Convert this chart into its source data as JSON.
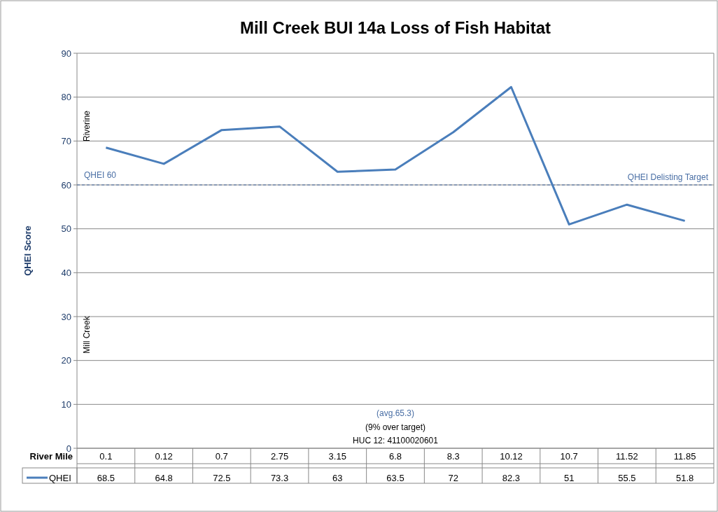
{
  "chart_data": {
    "type": "line",
    "title": "Mill Creek BUI 14a Loss of Fish Habitat",
    "xlabel": "River Mile",
    "ylabel": "QHEI Score",
    "categories": [
      "0.1",
      "0.12",
      "0.7",
      "2.75",
      "3.15",
      "6.8",
      "8.3",
      "10.12",
      "10.7",
      "11.52",
      "11.85"
    ],
    "series": [
      {
        "name": "QHEI",
        "color": "#4a7ebb",
        "values": [
          68.5,
          64.8,
          72.5,
          73.3,
          63,
          63.5,
          72,
          82.3,
          51,
          55.5,
          51.8
        ]
      }
    ],
    "ylim": [
      0,
      90
    ],
    "yticks": [
      0,
      10,
      20,
      30,
      40,
      50,
      60,
      70,
      80,
      90
    ],
    "grid": "y",
    "legend": "bottom",
    "data_labels": true,
    "marker": "none",
    "line_style": "solid",
    "ref_lines": [
      {
        "axis": "y",
        "value": 60,
        "label": "QHEI Delisting Target",
        "color": "#4a6fa5",
        "line_style": "dashed"
      }
    ],
    "annotations": [
      "QHEI 60",
      "Riverine",
      "Mill Creek",
      "(avg.65.3)",
      "(9% over target)",
      "HUC 12: 41100020601"
    ]
  }
}
